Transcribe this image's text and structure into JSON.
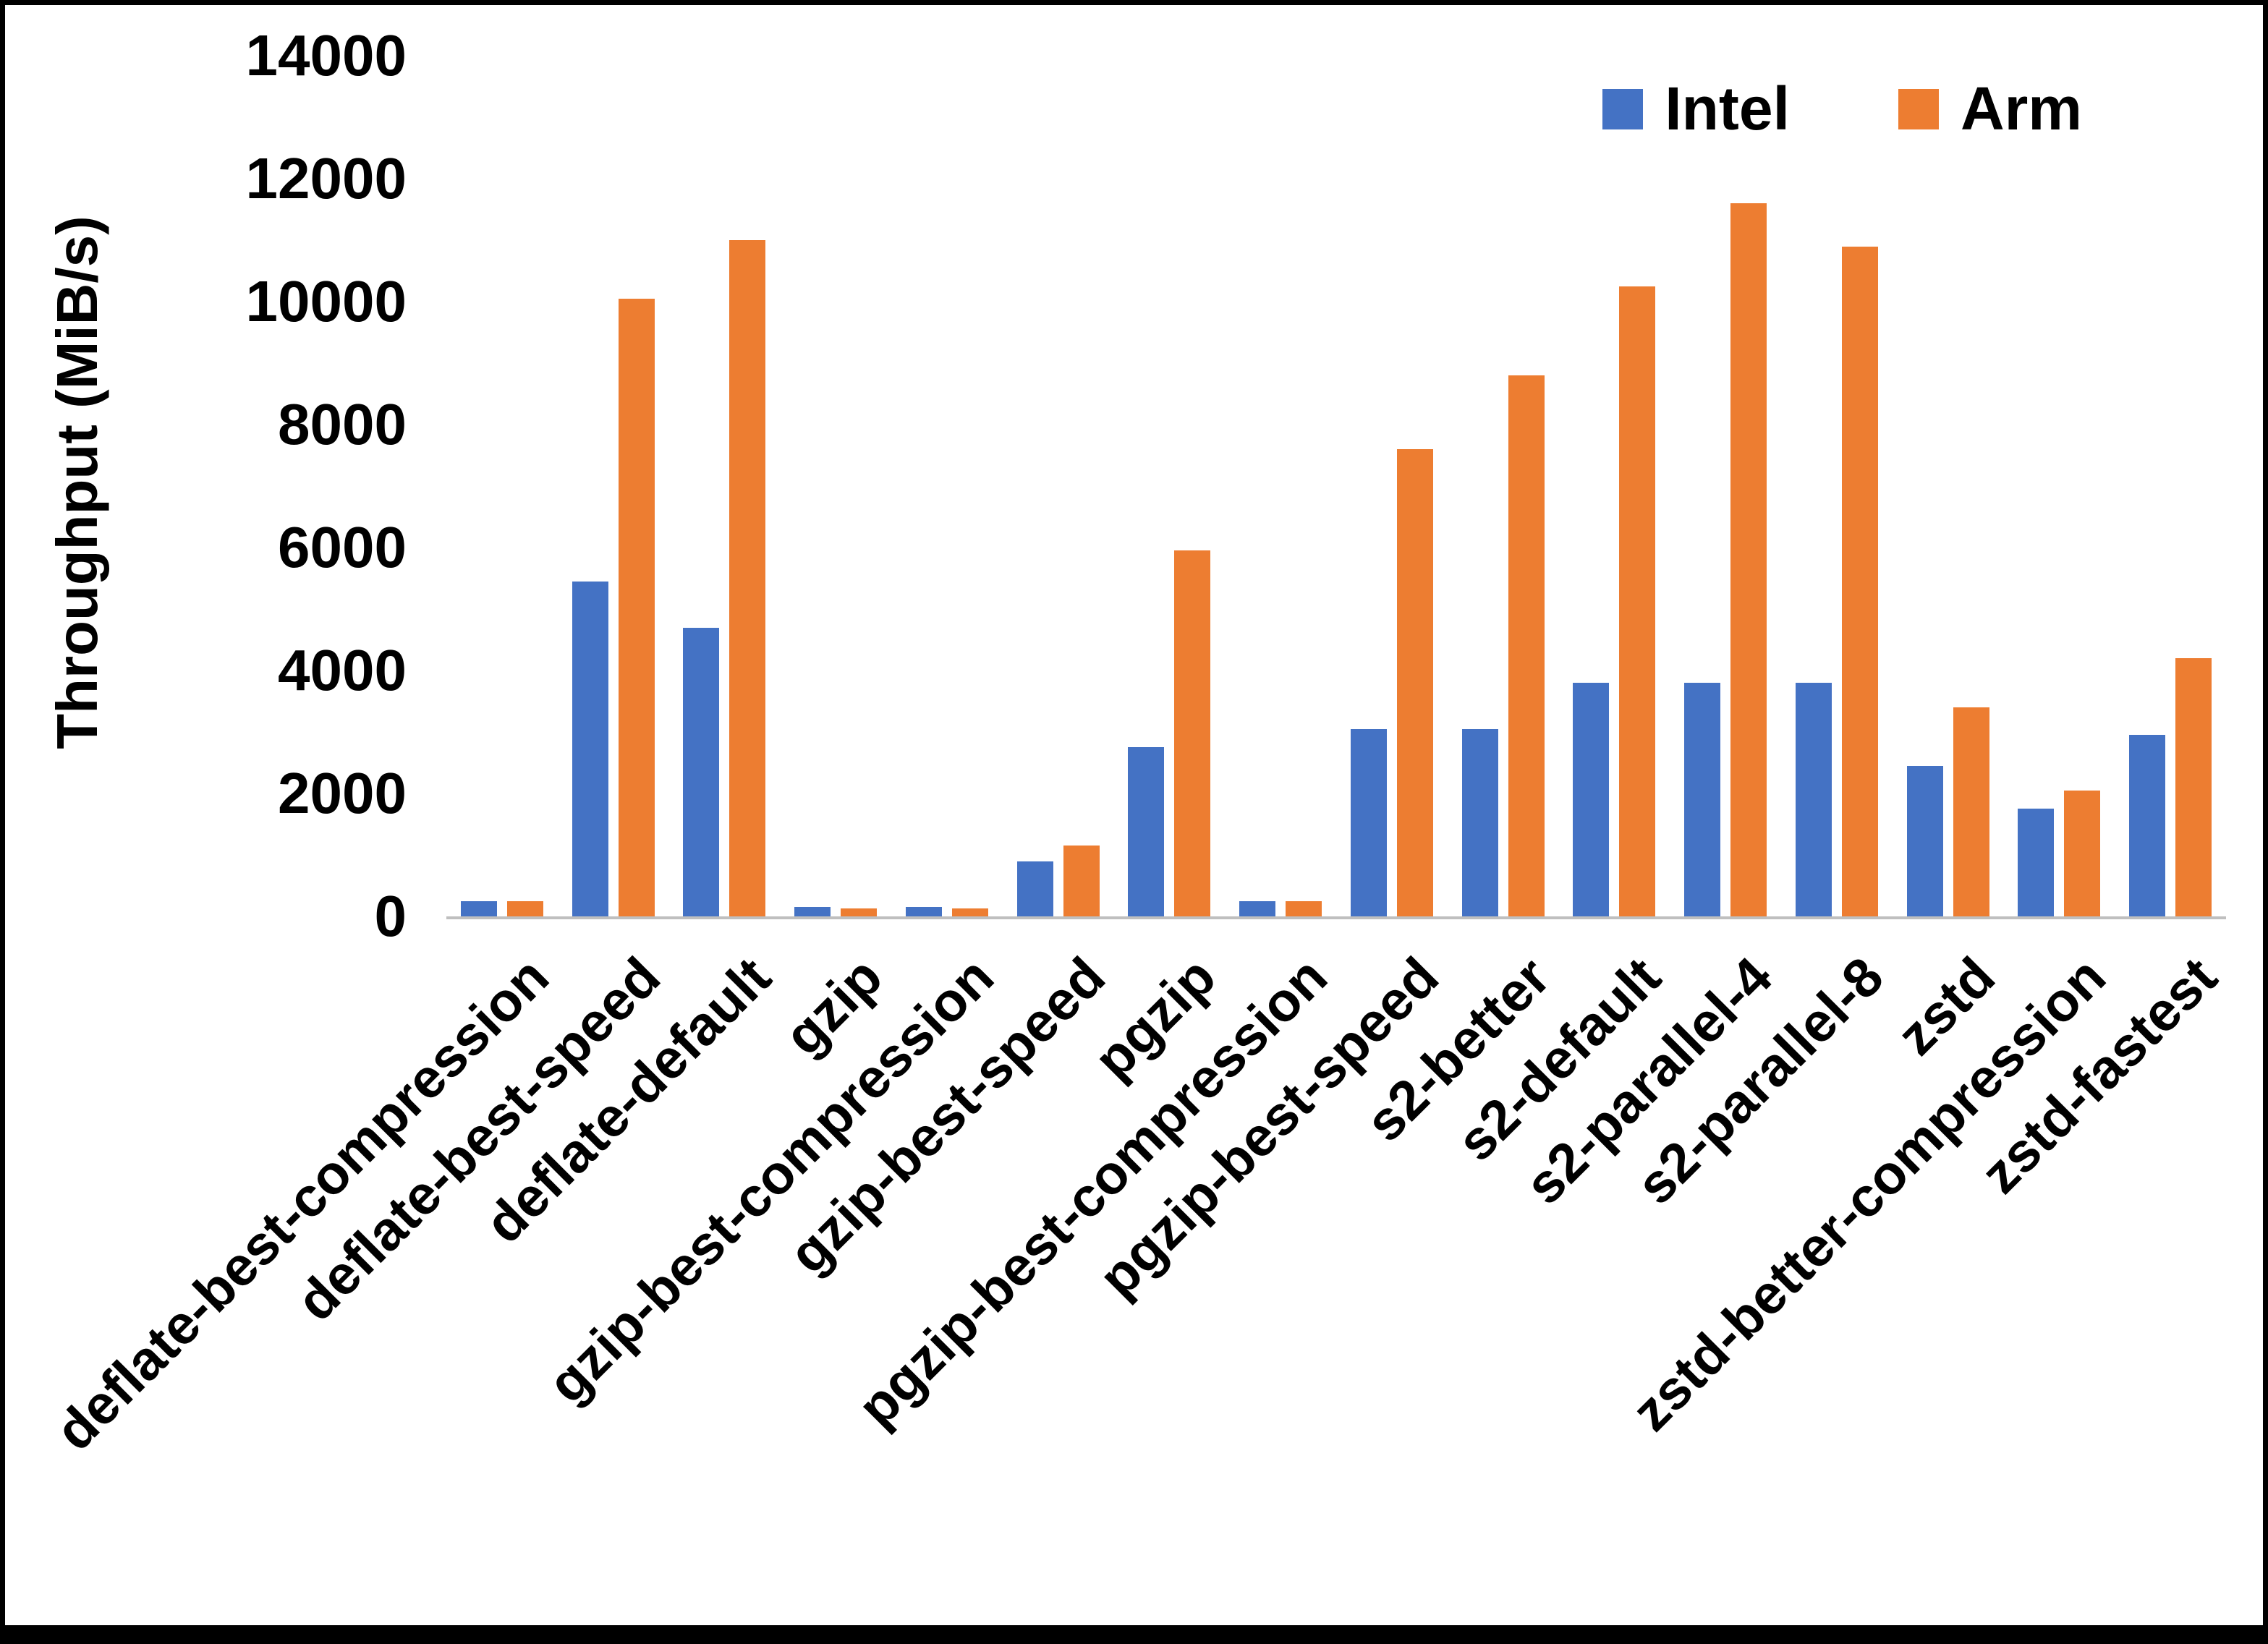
{
  "chart_data": {
    "type": "bar",
    "title": "",
    "xlabel": "",
    "ylabel": "Throughput (MiB/s)",
    "ylim": [
      0,
      14000
    ],
    "ytick_step": 2000,
    "grid": false,
    "legend_position": "top-right",
    "categories": [
      "deflate-best-compression",
      "deflate-best-speed",
      "deflate-default",
      "gzip",
      "gzip-best-compression",
      "gzip-best-speed",
      "pgzip",
      "pgzip-best-compression",
      "pgzip-best-speed",
      "s2-better",
      "s2-default",
      "s2-parallel-4",
      "s2-parallel-8",
      "zstd",
      "zstd-better-compression",
      "zstd-fastest"
    ],
    "series": [
      {
        "name": "Intel",
        "color": "#4472C4",
        "values": [
          250,
          5450,
          4700,
          150,
          150,
          900,
          2750,
          250,
          3050,
          3050,
          3800,
          3800,
          3800,
          2450,
          1750,
          2950
        ]
      },
      {
        "name": "Arm",
        "color": "#ED7D31",
        "values": [
          250,
          10050,
          11000,
          130,
          130,
          1150,
          5950,
          250,
          7600,
          8800,
          10250,
          11600,
          10900,
          3400,
          2050,
          4200
        ]
      }
    ]
  }
}
